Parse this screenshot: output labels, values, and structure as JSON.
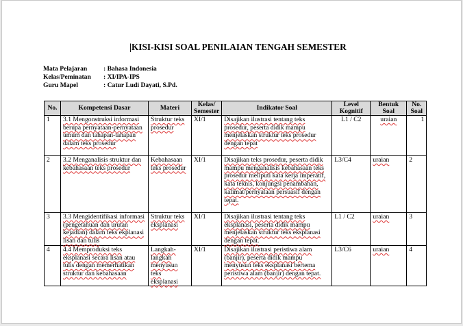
{
  "title": "KISI-KISI SOAL PENILAIAN TENGAH SEMESTER",
  "info": [
    {
      "label": "Mata Pelajaran",
      "value": ": Bahasa Indonesia"
    },
    {
      "label": "Kelas/Peminatan",
      "value": ": XI/IPA-IPS"
    },
    {
      "label": "Guru Mapel",
      "value": ": Catur Ludi Dayati, S.Pd."
    }
  ],
  "table": {
    "headers": [
      "No.",
      "Kompetensi Dasar",
      "Materi",
      "Kelas/ Semester",
      "Indikator Soal",
      "Level Kognitif",
      "Bentuk Soal",
      "No. Soal"
    ],
    "rows": [
      [
        "1",
        "3.1 Mengonstruksi informasi berupa pernyataan-pernyataan umum dan tahapan-tahapan dalam teks prosedur",
        "Struktur teks prosedur",
        "XI/1",
        "Disajikan ilustrasi tentang teks prosedur, peserta didik mampu menjelaskan struktur teks prosedur dengan tepat",
        "L1 / C2",
        "uraian",
        "1"
      ],
      [
        "2",
        "3.2 Menganalisis struktur dan kebahasaan teks prosedur",
        "Kebahasaan teks prosedur",
        "XI/1",
        "Disajikan teks prosedur, peserta didik mampu menganalisis kebahasaan teks prosedur meliputi kata kerja imperatif, kata teknis, konjungsi penambahan, kalimat/pernyataan persuasif dengan tepat.",
        "L3/C4",
        "uraian",
        "2"
      ],
      [
        "3",
        "3.3 Mengidentifikasi informasi (pengetahuan dan urutan kejadian) dalam teks ekplanasi lisan dan tulis",
        "Struktur teks eksplanasi",
        "XI/1",
        "Disajikan ilustrasi tentang teks eksplanasi, peserta didik mampu menjelaskan struktur teks eksplanasi dengan tepat.",
        "L1 / C2",
        "uraian",
        "3"
      ],
      [
        "4",
        "4.4 Memproduksi teks eksplanasi secara lisan atau tulis dengan memerhatikan struktur dan kebahasaan",
        "Langkah-langkah menyusun teks eksplanasi",
        "XI/1",
        "Disajikan ilustrasi peristiwa alam (banjir), peserta didik mampu menyusun teks eksplanasi bertema peristiwa alam (banjir) dengan tepat.",
        "L3/C6",
        "uraian",
        "4"
      ]
    ]
  }
}
